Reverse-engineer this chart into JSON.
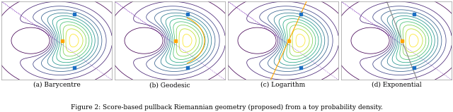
{
  "figure_title": "Figure 2: Score-based pullback Riemannian geometry (proposed) from a toy probability density.",
  "subplot_labels": [
    "(a) Barycentre",
    "(b) Geodesic",
    "(c) Logarithm",
    "(d) Exponential"
  ],
  "figsize": [
    6.4,
    1.59
  ],
  "dpi": 100,
  "background_color": "#ffffff",
  "xlim": [
    -2.5,
    2.5
  ],
  "ylim": [
    -2.5,
    2.5
  ],
  "contour_levels": 11,
  "blue_pt1": [
    0.8,
    1.7
  ],
  "blue_pt2": [
    0.8,
    -1.7
  ],
  "orange_pt": [
    0.25,
    0.0
  ],
  "diag_color": "#6a0dad",
  "geodesic_color": "#FFA500",
  "log_color": "#FFA500",
  "exp_color": "#888888",
  "blue_color": "#1a6fc4",
  "orange_color": "#FFA500"
}
